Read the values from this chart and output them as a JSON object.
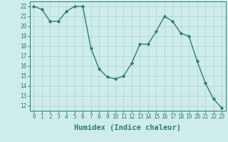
{
  "x": [
    0,
    1,
    2,
    3,
    4,
    5,
    6,
    7,
    8,
    9,
    10,
    11,
    12,
    13,
    14,
    15,
    16,
    17,
    18,
    19,
    20,
    21,
    22,
    23
  ],
  "y": [
    22,
    21.7,
    20.5,
    20.5,
    21.5,
    22,
    22,
    17.8,
    15.7,
    14.9,
    14.7,
    15,
    16.3,
    18.2,
    18.2,
    19.5,
    21.0,
    20.5,
    19.3,
    19.0,
    16.5,
    14.3,
    12.7,
    11.8
  ],
  "line_color": "#2d7d6e",
  "marker": "D",
  "marker_size": 2.2,
  "bg_color": "#ceecea",
  "grid_color": "#b0d8d4",
  "xlabel": "Humidex (Indice chaleur)",
  "xlim": [
    -0.5,
    23.5
  ],
  "ylim": [
    11.5,
    22.5
  ],
  "yticks": [
    12,
    13,
    14,
    15,
    16,
    17,
    18,
    19,
    20,
    21,
    22
  ],
  "xticks": [
    0,
    1,
    2,
    3,
    4,
    5,
    6,
    7,
    8,
    9,
    10,
    11,
    12,
    13,
    14,
    15,
    16,
    17,
    18,
    19,
    20,
    21,
    22,
    23
  ],
  "xtick_labels": [
    "0",
    "1",
    "2",
    "3",
    "4",
    "5",
    "6",
    "7",
    "8",
    "9",
    "10",
    "11",
    "12",
    "13",
    "14",
    "15",
    "16",
    "17",
    "18",
    "19",
    "20",
    "21",
    "22",
    "23"
  ],
  "tick_fontsize": 5.5,
  "xlabel_fontsize": 7.5
}
